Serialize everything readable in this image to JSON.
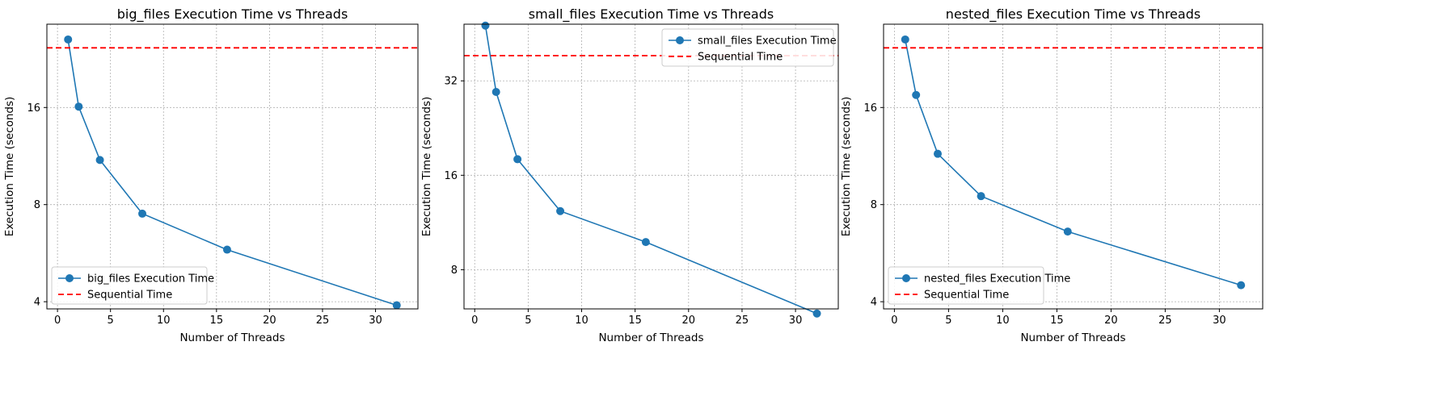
{
  "chart_data": [
    {
      "type": "line",
      "title": "big_files Execution Time vs Threads",
      "xlabel": "Number of Threads",
      "ylabel": "Execution Time (seconds)",
      "y_scale": "log2",
      "xlim": [
        -1,
        34
      ],
      "ylim": [
        3.8,
        29.0
      ],
      "x_ticks": [
        0,
        5,
        10,
        15,
        20,
        25,
        30
      ],
      "y_ticks": [
        4,
        8,
        16
      ],
      "grid": true,
      "legend_position": "lower-left",
      "series": [
        {
          "name": "big_files Execution Time",
          "type": "line",
          "marker": "circle",
          "color": "#1f77b4",
          "x": [
            1,
            2,
            4,
            8,
            16,
            32
          ],
          "y": [
            26.0,
            16.1,
            11.0,
            7.5,
            5.8,
            3.9
          ]
        },
        {
          "name": "Sequential Time",
          "type": "hline",
          "style": "dashed",
          "color": "#ff0000",
          "y": 24.5
        }
      ]
    },
    {
      "type": "line",
      "title": "small_files Execution Time vs Threads",
      "xlabel": "Number of Threads",
      "ylabel": "Execution Time (seconds)",
      "y_scale": "log2",
      "xlim": [
        -1,
        34
      ],
      "ylim": [
        6.0,
        48.5
      ],
      "x_ticks": [
        0,
        5,
        10,
        15,
        20,
        25,
        30
      ],
      "y_ticks": [
        8,
        16,
        32
      ],
      "grid": true,
      "legend_position": "upper-right",
      "series": [
        {
          "name": "small_files Execution Time",
          "type": "line",
          "marker": "circle",
          "color": "#1f77b4",
          "x": [
            1,
            2,
            4,
            8,
            16,
            32
          ],
          "y": [
            48.0,
            29.5,
            18.0,
            12.3,
            9.8,
            5.8
          ]
        },
        {
          "name": "Sequential Time",
          "type": "hline",
          "style": "dashed",
          "color": "#ff0000",
          "y": 38.5
        }
      ]
    },
    {
      "type": "line",
      "title": "nested_files Execution Time vs Threads",
      "xlabel": "Number of Threads",
      "ylabel": "Execution Time (seconds)",
      "y_scale": "log2",
      "xlim": [
        -1,
        34
      ],
      "ylim": [
        3.8,
        29.0
      ],
      "x_ticks": [
        0,
        5,
        10,
        15,
        20,
        25,
        30
      ],
      "y_ticks": [
        4,
        8,
        16
      ],
      "grid": true,
      "legend_position": "lower-left",
      "series": [
        {
          "name": "nested_files Execution Time",
          "type": "line",
          "marker": "circle",
          "color": "#1f77b4",
          "x": [
            1,
            2,
            4,
            8,
            16,
            32
          ],
          "y": [
            26.0,
            17.5,
            11.5,
            8.5,
            6.6,
            4.5
          ]
        },
        {
          "name": "Sequential Time",
          "type": "hline",
          "style": "dashed",
          "color": "#ff0000",
          "y": 24.5
        }
      ]
    }
  ]
}
